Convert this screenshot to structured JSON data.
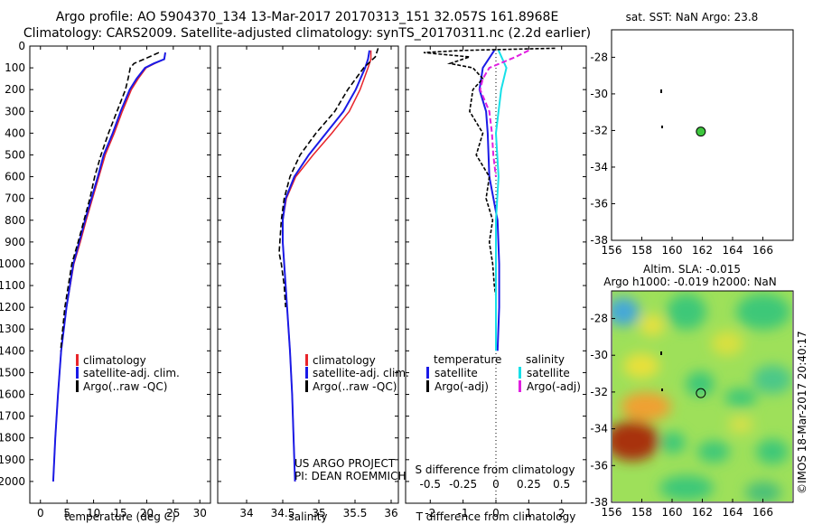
{
  "header": {
    "line1": "Argo profile: AO 5904370_134 13-Mar-2017 20170313_151 32.057S 161.8968E",
    "line2": "Climatology: CARS2009. Satellite-adjusted climatology: synTS_20170311.nc (2.2d earlier)"
  },
  "colors": {
    "climatology": "#e8242a",
    "satellite": "#1a1ae6",
    "argo": "#000000",
    "salinity_satellite": "#16e0e8",
    "salinity_argo": "#e020e0",
    "float_marker": "#3ec63e"
  },
  "depth_axis": {
    "ticks": [
      "0",
      "100",
      "200",
      "300",
      "400",
      "500",
      "600",
      "700",
      "800",
      "900",
      "1000",
      "1100",
      "1200",
      "1300",
      "1400",
      "1500",
      "1600",
      "1700",
      "1800",
      "1900",
      "2000"
    ]
  },
  "chart_data": [
    {
      "name": "temperature-profile",
      "type": "line",
      "xlabel": "temperature (deg C)",
      "xlim": [
        -2,
        32
      ],
      "ylim": [
        0,
        2100
      ],
      "xticks": [
        "0",
        "5",
        "10",
        "15",
        "20",
        "25",
        "30"
      ],
      "legend": [
        "climatology",
        "satellite-adj. clim.",
        "Argo(..raw -QC)"
      ],
      "series": [
        {
          "name": "climatology",
          "depth": [
            30,
            60,
            80,
            100,
            150,
            200,
            300,
            400,
            500,
            600,
            700,
            800,
            900,
            1000,
            1200,
            1400,
            1600,
            1800,
            2000
          ],
          "values": [
            23.5,
            23.3,
            21.5,
            19.9,
            18.4,
            17.1,
            15.4,
            13.9,
            12.2,
            11.0,
            9.8,
            8.6,
            7.5,
            6.3,
            4.9,
            3.9,
            3.3,
            2.8,
            2.4
          ]
        },
        {
          "name": "satellite-adj. clim.",
          "depth": [
            30,
            60,
            80,
            100,
            150,
            200,
            300,
            400,
            500,
            600,
            700,
            800,
            900,
            1000,
            1200,
            1400,
            1600,
            1800,
            2000
          ],
          "values": [
            23.5,
            23.3,
            21.3,
            19.7,
            18.1,
            16.8,
            15.1,
            13.6,
            11.9,
            10.8,
            9.6,
            8.4,
            7.3,
            6.2,
            4.9,
            3.9,
            3.3,
            2.8,
            2.4
          ]
        },
        {
          "name": "Argo(..raw -QC)",
          "depth": [
            30,
            60,
            80,
            100,
            150,
            200,
            300,
            400,
            500,
            600,
            700,
            800,
            900,
            1000,
            1200,
            1400
          ],
          "values": [
            22.3,
            19.5,
            17.6,
            16.9,
            16.5,
            16.0,
            14.4,
            12.8,
            11.4,
            10.2,
            9.3,
            8.2,
            7.1,
            5.9,
            4.6,
            3.8
          ]
        }
      ]
    },
    {
      "name": "salinity-profile",
      "type": "line",
      "xlabel": "salinity",
      "xlim": [
        33.6,
        36.1
      ],
      "ylim": [
        0,
        2100
      ],
      "xticks": [
        "34",
        "34.5",
        "35",
        "35.5",
        "36"
      ],
      "legend": [
        "climatology",
        "satellite-adj. clim.",
        "Argo(..raw -QC)"
      ],
      "series": [
        {
          "name": "climatology",
          "depth": [
            20,
            60,
            100,
            200,
            300,
            400,
            500,
            600,
            700,
            800,
            900,
            1000,
            1200,
            1400,
            1600,
            1800,
            2000
          ],
          "values": [
            35.72,
            35.72,
            35.68,
            35.57,
            35.42,
            35.18,
            34.92,
            34.68,
            34.55,
            34.5,
            34.5,
            34.52,
            34.56,
            34.6,
            34.63,
            34.65,
            34.67
          ]
        },
        {
          "name": "satellite-adj. clim.",
          "depth": [
            20,
            60,
            100,
            200,
            300,
            400,
            500,
            600,
            700,
            800,
            900,
            1000,
            1200,
            1400,
            1600,
            1800,
            2000
          ],
          "values": [
            35.7,
            35.68,
            35.64,
            35.51,
            35.34,
            35.1,
            34.86,
            34.66,
            34.54,
            34.5,
            34.5,
            34.52,
            34.56,
            34.6,
            34.63,
            34.65,
            34.67
          ]
        },
        {
          "name": "Argo(..raw -QC)",
          "depth": [
            10,
            50,
            100,
            200,
            300,
            400,
            500,
            600,
            700,
            800,
            900,
            950,
            1000,
            1100,
            1200
          ],
          "values": [
            35.82,
            35.78,
            35.62,
            35.4,
            35.22,
            34.96,
            34.74,
            34.6,
            34.52,
            34.48,
            34.46,
            34.45,
            34.48,
            34.52,
            34.54
          ]
        }
      ]
    },
    {
      "name": "difference-profile",
      "type": "line",
      "xlabel": "T difference from climatology",
      "xlabel_top": "S difference from climatology",
      "xlim": [
        -2.75,
        2.75
      ],
      "ylim": [
        0,
        2100
      ],
      "xticks": [
        "-2",
        "-1",
        "0",
        "1",
        "2"
      ],
      "xticks_top": [
        "-0.5",
        "-0.25",
        "0",
        "0.25",
        "0.5"
      ],
      "legend_headers": [
        "temperature",
        "salinity"
      ],
      "legend": [
        "satellite",
        "Argo(-adj)",
        "satellite",
        "Argo(-adj)"
      ],
      "series": [
        {
          "name": "temperature satellite",
          "depth": [
            20,
            100,
            200,
            300,
            400,
            600,
            800,
            1000,
            1200,
            1400
          ],
          "values": [
            -0.05,
            -0.4,
            -0.5,
            -0.3,
            -0.25,
            -0.2,
            0.05,
            0.1,
            0.1,
            0.05
          ]
        },
        {
          "name": "temperature Argo(-adj)",
          "depth": [
            10,
            20,
            30,
            50,
            80,
            100,
            150,
            200,
            300,
            400,
            500,
            600,
            700,
            800,
            900,
            1000,
            1100,
            1150
          ],
          "values": [
            1.8,
            -1.0,
            -2.2,
            -0.8,
            -1.4,
            -0.7,
            -0.4,
            -0.7,
            -0.8,
            -0.4,
            -0.6,
            -0.2,
            -0.3,
            -0.1,
            -0.2,
            -0.1,
            -0.05,
            0.0
          ]
        },
        {
          "name": "salinity satellite",
          "depth": [
            20,
            100,
            200,
            400,
            600,
            800,
            1000,
            1200,
            1400
          ],
          "values": [
            0.02,
            0.08,
            0.04,
            0.0,
            0.02,
            0.0,
            0.0,
            0.0,
            0.0
          ]
        },
        {
          "name": "salinity Argo(-adj)",
          "depth": [
            20,
            50,
            100,
            150,
            200,
            300,
            400,
            500,
            600
          ],
          "values": [
            0.25,
            0.15,
            -0.05,
            -0.1,
            -0.12,
            -0.05,
            -0.03,
            -0.02,
            0.0
          ]
        }
      ]
    },
    {
      "name": "sst-map",
      "type": "scatter",
      "title": "sat. SST: NaN Argo: 23.8",
      "xlim": [
        156,
        168
      ],
      "ylim": [
        -38,
        -26.5
      ],
      "xticks": [
        "156",
        "158",
        "160",
        "162",
        "164",
        "166"
      ],
      "yticks": [
        "-28",
        "-30",
        "-32",
        "-34",
        "-36",
        "-38"
      ],
      "points": [
        {
          "lon": 161.9,
          "lat": -32.06
        }
      ]
    },
    {
      "name": "sla-map",
      "type": "heatmap",
      "title_line1": "Altim. SLA: -0.015",
      "title_line2": "Argo h1000: -0.019 h2000: NaN",
      "xlim": [
        156,
        168
      ],
      "ylim": [
        -38,
        -26.5
      ],
      "xticks": [
        "156",
        "158",
        "160",
        "162",
        "164",
        "166"
      ],
      "yticks": [
        "-28",
        "-30",
        "-32",
        "-34",
        "-36",
        "-38"
      ],
      "points": [
        {
          "lon": 161.9,
          "lat": -32.06
        }
      ]
    }
  ],
  "footer": {
    "project_line1": "US ARGO PROJECT",
    "project_line2": "PI: DEAN ROEMMICH",
    "credit": "©IMOS 18-Mar-2017 20:40:17"
  }
}
